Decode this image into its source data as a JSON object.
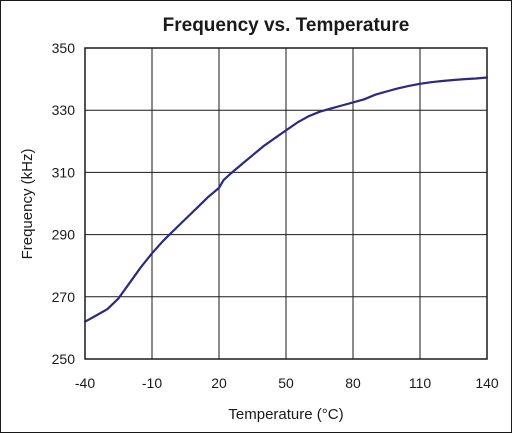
{
  "chart_data": {
    "type": "line",
    "title": "Frequency vs. Temperature",
    "xlabel": "Temperature (°C)",
    "ylabel": "Frequency (kHz)",
    "xlim": [
      -40,
      140
    ],
    "ylim": [
      250,
      350
    ],
    "xticks": [
      -40,
      -10,
      20,
      50,
      80,
      110,
      140
    ],
    "yticks": [
      250,
      270,
      290,
      310,
      330,
      350
    ],
    "grid": true,
    "line_color": "#2b2a80",
    "series": [
      {
        "x": [
          -40,
          -35,
          -30,
          -25,
          -20,
          -15,
          -10,
          -5,
          0,
          5,
          10,
          15,
          20,
          22,
          25,
          30,
          35,
          40,
          45,
          50,
          55,
          60,
          65,
          70,
          75,
          80,
          85,
          90,
          95,
          100,
          105,
          110,
          115,
          120,
          125,
          130,
          135,
          140
        ],
        "y": [
          262.0,
          264.0,
          266.0,
          269.5,
          274.5,
          279.5,
          284.0,
          288.0,
          291.5,
          295.0,
          298.5,
          302.0,
          305.0,
          307.5,
          309.5,
          312.5,
          315.5,
          318.5,
          321.0,
          323.5,
          326.0,
          328.0,
          329.5,
          330.5,
          331.5,
          332.5,
          333.5,
          335.0,
          336.0,
          337.0,
          337.8,
          338.5,
          339.0,
          339.4,
          339.7,
          340.0,
          340.2,
          340.5
        ]
      }
    ]
  }
}
